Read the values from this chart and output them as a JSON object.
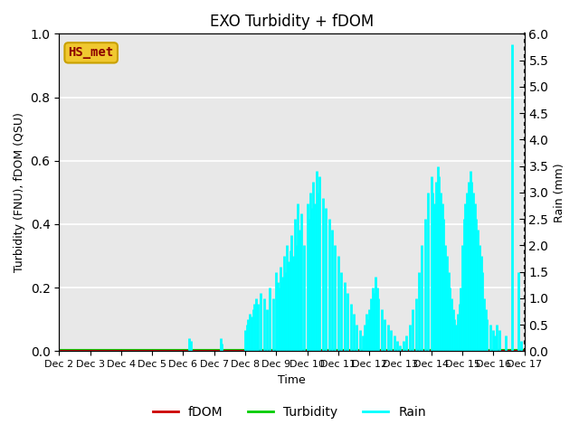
{
  "title": "EXO Turbidity + fDOM",
  "xlabel": "Time",
  "ylabel_left": "Turbidity (FNU), fDOM (QSU)",
  "ylabel_right": "Rain (mm)",
  "ylim_left": [
    0,
    1.0
  ],
  "ylim_right": [
    0,
    6.0
  ],
  "xlim": [
    0,
    15
  ],
  "x_tick_labels": [
    "Dec 2",
    "Dec 3",
    "Dec 4",
    "Dec 5",
    "Dec 6",
    "Dec 7",
    "Dec 8",
    "Dec 9",
    "Dec 10",
    "Dec 11",
    "Dec 12",
    "Dec 13",
    "Dec 14",
    "Dec 15",
    "Dec 16",
    "Dec 17"
  ],
  "background_color": "#ffffff",
  "plot_bg_color": "#e8e8e8",
  "grid_color": "#ffffff",
  "hs_met_label": "HS_met",
  "hs_met_bg": "#f0c830",
  "hs_met_text_color": "#8b0000",
  "fdom_color": "#cc0000",
  "turbidity_color": "#00cc00",
  "rain_color": "#00ffff",
  "legend_labels": [
    "fDOM",
    "Turbidity",
    "Rain"
  ],
  "rain_data_x": [
    4.2,
    4.25,
    5.2,
    5.25,
    6.0,
    6.05,
    6.1,
    6.15,
    6.2,
    6.25,
    6.3,
    6.35,
    6.4,
    6.5,
    6.6,
    6.7,
    6.8,
    6.9,
    7.0,
    7.05,
    7.1,
    7.15,
    7.2,
    7.25,
    7.3,
    7.35,
    7.4,
    7.45,
    7.5,
    7.55,
    7.6,
    7.65,
    7.7,
    7.75,
    7.8,
    7.9,
    8.0,
    8.05,
    8.1,
    8.15,
    8.2,
    8.25,
    8.3,
    8.35,
    8.4,
    8.5,
    8.6,
    8.7,
    8.8,
    8.9,
    9.0,
    9.1,
    9.2,
    9.3,
    9.4,
    9.5,
    9.6,
    9.7,
    9.8,
    9.85,
    9.9,
    9.95,
    10.0,
    10.05,
    10.1,
    10.15,
    10.2,
    10.25,
    10.3,
    10.4,
    10.5,
    10.6,
    10.7,
    10.8,
    10.9,
    11.0,
    11.1,
    11.2,
    11.3,
    11.4,
    11.5,
    11.6,
    11.7,
    11.8,
    11.9,
    12.0,
    12.05,
    12.1,
    12.15,
    12.2,
    12.25,
    12.3,
    12.35,
    12.4,
    12.45,
    12.5,
    12.55,
    12.6,
    12.65,
    12.7,
    12.75,
    12.8,
    12.85,
    12.9,
    12.95,
    13.0,
    13.05,
    13.1,
    13.15,
    13.2,
    13.25,
    13.3,
    13.35,
    13.4,
    13.45,
    13.5,
    13.55,
    13.6,
    13.65,
    13.7,
    13.75,
    13.8,
    13.9,
    14.0,
    14.05,
    14.1,
    14.2,
    14.4,
    14.6,
    14.8,
    14.9
  ],
  "rain_data_y": [
    0.25,
    0.2,
    0.25,
    0.15,
    0.4,
    0.5,
    0.6,
    0.7,
    0.65,
    0.8,
    0.9,
    1.0,
    0.9,
    1.1,
    1.0,
    0.8,
    1.2,
    1.0,
    1.5,
    1.3,
    1.2,
    1.6,
    1.4,
    1.8,
    1.5,
    2.0,
    1.7,
    1.9,
    2.2,
    1.8,
    2.5,
    2.0,
    2.8,
    2.3,
    2.6,
    2.0,
    2.8,
    2.5,
    3.0,
    2.7,
    3.2,
    2.8,
    3.4,
    3.0,
    3.3,
    2.9,
    2.7,
    2.5,
    2.3,
    2.0,
    1.8,
    1.5,
    1.3,
    1.1,
    0.9,
    0.7,
    0.5,
    0.4,
    0.3,
    0.5,
    0.7,
    0.6,
    0.8,
    1.0,
    1.2,
    1.1,
    1.4,
    1.2,
    1.0,
    0.8,
    0.6,
    0.5,
    0.4,
    0.3,
    0.2,
    0.1,
    0.2,
    0.3,
    0.5,
    0.8,
    1.0,
    1.5,
    2.0,
    2.5,
    3.0,
    3.3,
    3.0,
    2.8,
    3.2,
    3.5,
    3.3,
    3.0,
    2.8,
    2.5,
    2.0,
    1.8,
    1.5,
    1.2,
    1.0,
    0.8,
    0.6,
    0.5,
    0.7,
    0.9,
    1.2,
    2.0,
    2.5,
    2.8,
    3.0,
    3.2,
    3.4,
    3.2,
    3.0,
    2.8,
    2.5,
    2.3,
    2.0,
    1.8,
    1.5,
    1.0,
    0.8,
    0.6,
    0.5,
    0.4,
    0.3,
    0.5,
    0.4,
    0.3,
    5.8,
    1.5,
    0.2
  ],
  "yticks_right": [
    0.0,
    0.5,
    1.0,
    1.5,
    2.0,
    2.5,
    3.0,
    3.5,
    4.0,
    4.5,
    5.0,
    5.5,
    6.0
  ],
  "yticks_left": [
    0.0,
    0.2,
    0.4,
    0.6,
    0.8,
    1.0
  ]
}
